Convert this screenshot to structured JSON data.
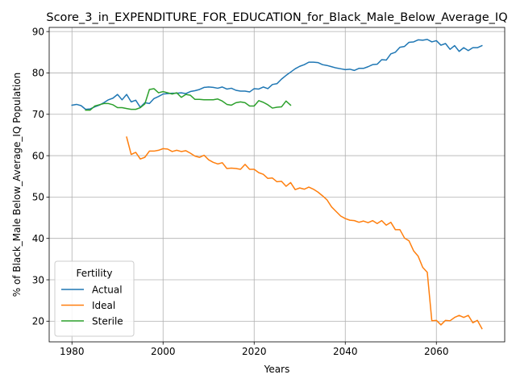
{
  "chart_data": {
    "type": "line",
    "title": "Score_3_in_EXPENDITURE_FOR_EDUCATION_for_Black_Male_Below_Average_IQ",
    "xlabel": "Years",
    "ylabel": "% of Black_Male Below_Average_IQ Population",
    "xlim": [
      1975,
      2075
    ],
    "ylim": [
      15,
      91
    ],
    "x_ticks": [
      "1980",
      "2000",
      "2020",
      "2040",
      "2060"
    ],
    "y_ticks": [
      "20",
      "30",
      "40",
      "50",
      "60",
      "70",
      "80",
      "90"
    ],
    "grid": true,
    "legend": {
      "title": "Fertility",
      "placement": "lower-left"
    },
    "series": [
      {
        "name": "Actual",
        "color": "#1f77b4",
        "x": [
          1980,
          1981,
          1982,
          1983,
          1984,
          1985,
          1986,
          1987,
          1988,
          1989,
          1990,
          1991,
          1992,
          1993,
          1994,
          1995,
          1996,
          1997,
          1998,
          1999,
          2000,
          2001,
          2002,
          2003,
          2004,
          2005,
          2006,
          2007,
          2008,
          2009,
          2010,
          2011,
          2012,
          2013,
          2014,
          2015,
          2016,
          2017,
          2018,
          2019,
          2020,
          2021,
          2022,
          2023,
          2024,
          2025,
          2026,
          2027,
          2028,
          2029,
          2030,
          2031,
          2032,
          2033,
          2034,
          2035,
          2036,
          2037,
          2038,
          2039,
          2040,
          2041,
          2042,
          2043,
          2044,
          2045,
          2046,
          2047,
          2048,
          2049,
          2050,
          2051,
          2052,
          2053,
          2054,
          2055,
          2056,
          2057,
          2058,
          2059,
          2060,
          2061,
          2062,
          2063,
          2064,
          2065,
          2066,
          2067,
          2068,
          2069,
          2070
        ],
        "values": [
          72.2,
          72.4,
          72.1,
          71.2,
          71.3,
          71.8,
          72.2,
          72.8,
          73.5,
          73.9,
          74.8,
          73.5,
          74.8,
          73.0,
          73.4,
          71.7,
          72.8,
          72.6,
          73.8,
          74.3,
          74.9,
          75.0,
          75.1,
          75.1,
          75.2,
          75.0,
          75.5,
          75.7,
          76.0,
          76.5,
          76.6,
          76.5,
          76.3,
          76.6,
          76.1,
          76.3,
          75.8,
          75.6,
          75.6,
          75.4,
          76.2,
          76.1,
          76.6,
          76.2,
          77.2,
          77.4,
          78.5,
          79.4,
          80.2,
          81.0,
          81.6,
          82.0,
          82.6,
          82.6,
          82.5,
          82.0,
          81.8,
          81.5,
          81.2,
          81.0,
          80.8,
          80.9,
          80.6,
          81.1,
          81.1,
          81.5,
          82.0,
          82.1,
          83.2,
          83.1,
          84.6,
          85.0,
          86.2,
          86.4,
          87.4,
          87.5,
          88.0,
          87.9,
          88.1,
          87.5,
          87.8,
          86.7,
          87.1,
          85.7,
          86.6,
          85.2,
          86.1,
          85.4,
          86.1,
          86.1,
          86.6
        ]
      },
      {
        "name": "Ideal",
        "color": "#ff7f0e",
        "x": [
          1992,
          1993,
          1994,
          1995,
          1996,
          1997,
          1998,
          1999,
          2000,
          2001,
          2002,
          2003,
          2004,
          2005,
          2006,
          2007,
          2008,
          2009,
          2010,
          2011,
          2012,
          2013,
          2014,
          2015,
          2016,
          2017,
          2018,
          2019,
          2020,
          2021,
          2022,
          2023,
          2024,
          2025,
          2026,
          2027,
          2028,
          2029,
          2030,
          2031,
          2032,
          2033,
          2034,
          2035,
          2036,
          2037,
          2038,
          2039,
          2040,
          2041,
          2042,
          2043,
          2044,
          2045,
          2046,
          2047,
          2048,
          2049,
          2050,
          2051,
          2052,
          2053,
          2054,
          2055,
          2056,
          2057,
          2058,
          2059,
          2060,
          2061,
          2062,
          2063,
          2064,
          2065,
          2066,
          2067,
          2068,
          2069,
          2070
        ],
        "values": [
          64.5,
          60.3,
          60.8,
          59.2,
          59.6,
          61.1,
          61.1,
          61.3,
          61.7,
          61.6,
          61.0,
          61.3,
          61.0,
          61.2,
          60.6,
          59.9,
          59.6,
          60.1,
          59.0,
          58.4,
          58.0,
          58.3,
          56.9,
          57.0,
          56.9,
          56.7,
          57.9,
          56.7,
          56.7,
          55.9,
          55.5,
          54.5,
          54.6,
          53.7,
          53.8,
          52.6,
          53.5,
          51.8,
          52.2,
          51.9,
          52.4,
          51.9,
          51.2,
          50.3,
          49.3,
          47.6,
          46.5,
          45.4,
          44.8,
          44.4,
          44.3,
          43.9,
          44.2,
          43.8,
          44.3,
          43.6,
          44.3,
          43.2,
          43.9,
          42.1,
          42.1,
          40.1,
          39.4,
          37.0,
          35.7,
          33.0,
          31.8,
          20.1,
          20.2,
          19.1,
          20.2,
          20.1,
          20.9,
          21.4,
          20.9,
          21.4,
          19.6,
          20.2,
          18.2
        ]
      },
      {
        "name": "Sterile",
        "color": "#2ca02c",
        "x": [
          1983,
          1984,
          1985,
          1986,
          1987,
          1988,
          1989,
          1990,
          1991,
          1992,
          1993,
          1994,
          1995,
          1996,
          1997,
          1998,
          1999,
          2000,
          2001,
          2002,
          2003,
          2004,
          2005,
          2006,
          2007,
          2008,
          2009,
          2010,
          2011,
          2012,
          2013,
          2014,
          2015,
          2016,
          2017,
          2018,
          2019,
          2020,
          2021,
          2022,
          2023,
          2024,
          2025,
          2026,
          2027,
          2028
        ],
        "values": [
          71.0,
          71.0,
          72.0,
          72.3,
          72.6,
          72.6,
          72.3,
          71.6,
          71.6,
          71.4,
          71.2,
          71.2,
          71.6,
          72.5,
          76.0,
          76.2,
          75.2,
          75.5,
          75.2,
          74.9,
          75.2,
          74.1,
          74.8,
          74.6,
          73.6,
          73.6,
          73.5,
          73.5,
          73.5,
          73.7,
          73.2,
          72.4,
          72.2,
          72.8,
          73.0,
          72.8,
          72.0,
          72.0,
          73.3,
          72.9,
          72.3,
          71.5,
          71.7,
          71.8,
          73.2,
          72.2
        ]
      }
    ]
  }
}
